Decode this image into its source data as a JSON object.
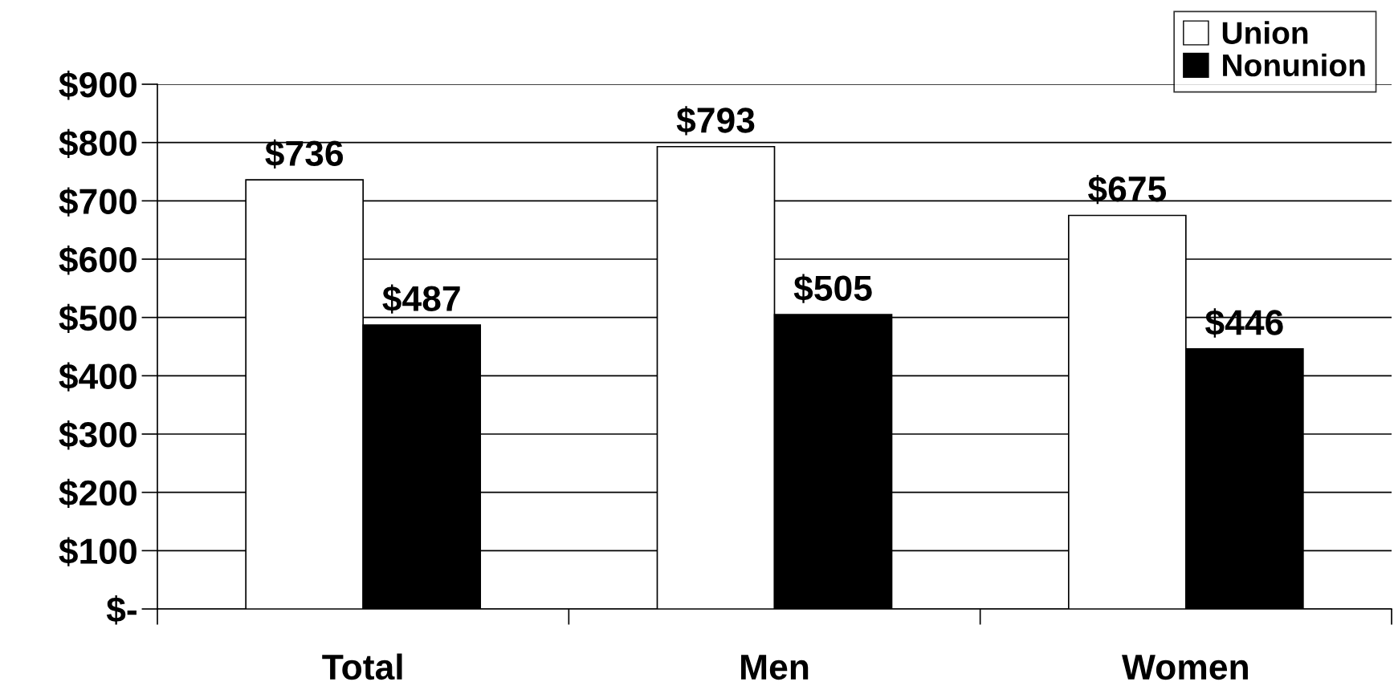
{
  "chart_data": {
    "type": "bar",
    "categories": [
      "Total",
      "Men",
      "Women"
    ],
    "series": [
      {
        "name": "Union",
        "color": "#ffffff",
        "values": [
          736,
          793,
          675
        ],
        "value_labels": [
          "$736",
          "$793",
          "$675"
        ]
      },
      {
        "name": "Nonunion",
        "color": "#000000",
        "values": [
          487,
          505,
          446
        ],
        "value_labels": [
          "$487",
          "$505",
          "$446"
        ]
      }
    ],
    "ylim": [
      0,
      900
    ],
    "yticks": [
      {
        "value": 0,
        "label": "$-"
      },
      {
        "value": 100,
        "label": "$100"
      },
      {
        "value": 200,
        "label": "$200"
      },
      {
        "value": 300,
        "label": "$300"
      },
      {
        "value": 400,
        "label": "$400"
      },
      {
        "value": 500,
        "label": "$500"
      },
      {
        "value": 600,
        "label": "$600"
      },
      {
        "value": 700,
        "label": "$700"
      },
      {
        "value": 800,
        "label": "$800"
      },
      {
        "value": 900,
        "label": "$900"
      }
    ],
    "grid": "y",
    "legend": "top right"
  }
}
